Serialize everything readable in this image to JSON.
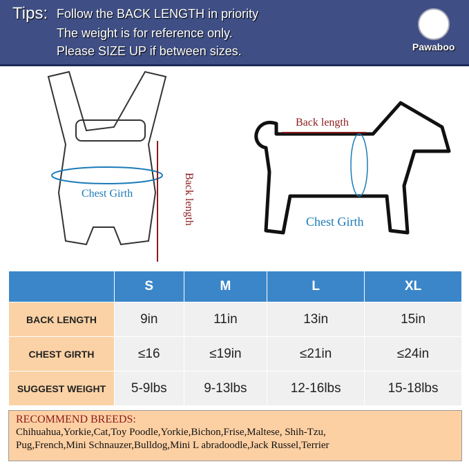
{
  "banner": {
    "tips_label": "Tips:",
    "lines": [
      "Follow the BACK LENGTH in priority",
      "The weight is for reference only.",
      "Please SIZE UP if between sizes."
    ],
    "logo": "Pawaboo"
  },
  "illustration": {
    "carrier_chest": "Chest Girth",
    "carrier_back": "Back length",
    "dog_back": "Back length",
    "dog_chest": "Chest Girth"
  },
  "table": {
    "headers": [
      "",
      "S",
      "M",
      "L",
      "XL"
    ],
    "rows": [
      {
        "label": "BACK LENGTH",
        "values": [
          "9in",
          "11in",
          "13in",
          "15in"
        ]
      },
      {
        "label": "CHEST GIRTH",
        "values": [
          "≤16",
          "≤19in",
          "≤21in",
          "≤24in"
        ]
      },
      {
        "label": "SUGGEST WEIGHT",
        "values": [
          "5-9lbs",
          "9-13lbs",
          "12-16lbs",
          "15-18lbs"
        ]
      }
    ]
  },
  "breeds": {
    "title": "RECOMMEND BREEDS:",
    "lines": [
      "Chihuahua,Yorkie,Cat,Toy Poodle,Yorkie,Bichon,Frise,Maltese, Shih-Tzu,",
      "Pug,French,Mini Schnauzer,Bulldog,Mini L abradoodle,Jack Russel,Terrier"
    ]
  },
  "colors": {
    "banner": "#3f4f85",
    "header": "#3b86c9",
    "label_cell": "#fbd2a5",
    "accent_red": "#8b1a1a",
    "accent_blue": "#1a7ab8"
  }
}
